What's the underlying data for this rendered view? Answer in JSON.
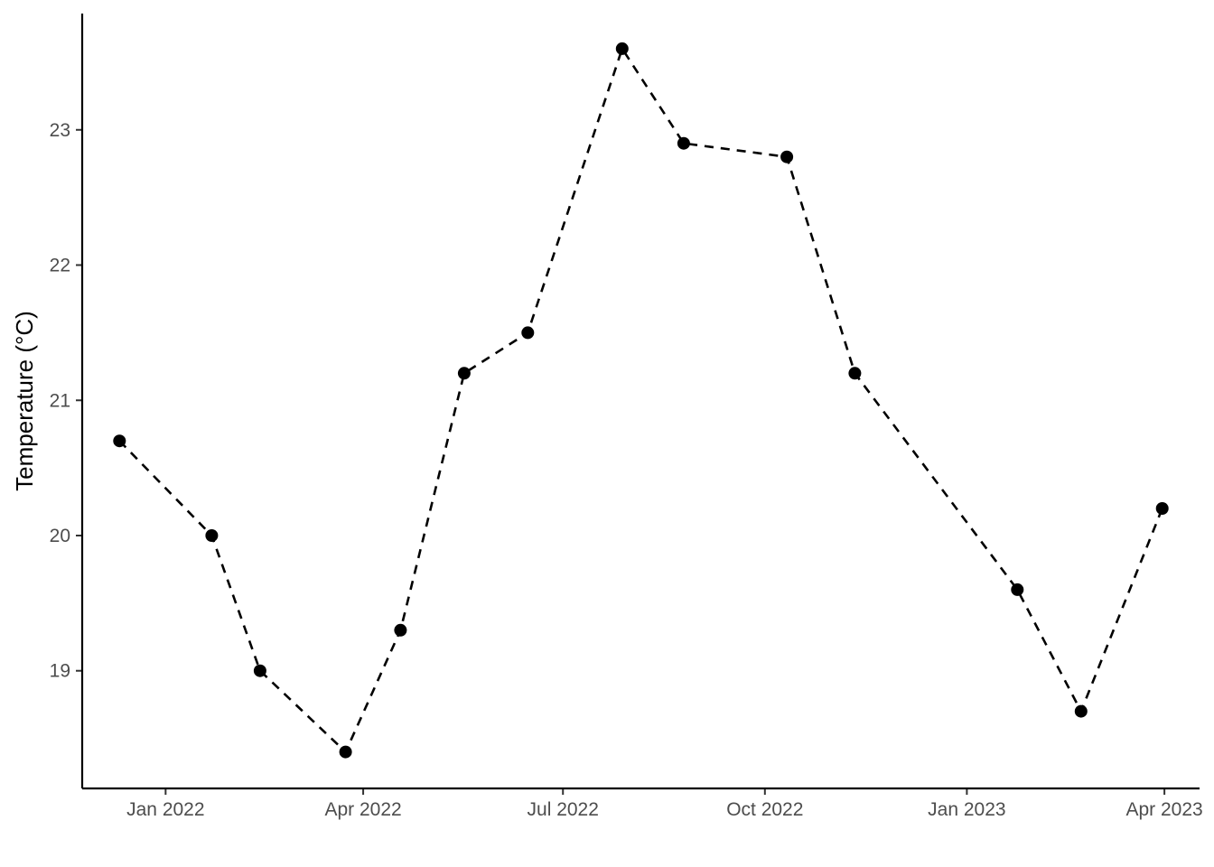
{
  "chart_data": {
    "type": "line",
    "title": "",
    "xlabel": "",
    "ylabel": "Temperature (°C)",
    "x_is_date": true,
    "xlim": [
      "2021-11-24",
      "2023-04-17"
    ],
    "ylim": [
      18.13,
      23.86
    ],
    "grid": false,
    "legend": "none",
    "x_ticks": [
      {
        "date": "2022-01-01",
        "label": "Jan 2022"
      },
      {
        "date": "2022-04-01",
        "label": "Apr 2022"
      },
      {
        "date": "2022-07-01",
        "label": "Jul 2022"
      },
      {
        "date": "2022-10-01",
        "label": "Oct 2022"
      },
      {
        "date": "2023-01-01",
        "label": "Jan 2023"
      },
      {
        "date": "2023-04-01",
        "label": "Apr 2023"
      }
    ],
    "y_ticks": [
      {
        "value": 19,
        "label": "19"
      },
      {
        "value": 20,
        "label": "20"
      },
      {
        "value": 21,
        "label": "21"
      },
      {
        "value": 22,
        "label": "22"
      },
      {
        "value": 23,
        "label": "23"
      }
    ],
    "series": [
      {
        "line_style": "dashed",
        "marker": "filled-circle",
        "color": "#000000",
        "points": [
          {
            "x": "2021-12-11",
            "y": 20.7
          },
          {
            "x": "2022-01-22",
            "y": 20.0
          },
          {
            "x": "2022-02-13",
            "y": 19.0
          },
          {
            "x": "2022-03-24",
            "y": 18.4
          },
          {
            "x": "2022-04-18",
            "y": 19.3
          },
          {
            "x": "2022-05-17",
            "y": 21.2
          },
          {
            "x": "2022-06-15",
            "y": 21.5
          },
          {
            "x": "2022-07-28",
            "y": 23.6
          },
          {
            "x": "2022-08-25",
            "y": 22.9
          },
          {
            "x": "2022-10-11",
            "y": 22.8
          },
          {
            "x": "2022-11-11",
            "y": 21.2
          },
          {
            "x": "2023-01-24",
            "y": 19.6
          },
          {
            "x": "2023-02-22",
            "y": 18.7
          },
          {
            "x": "2023-03-31",
            "y": 20.2
          }
        ]
      }
    ]
  }
}
